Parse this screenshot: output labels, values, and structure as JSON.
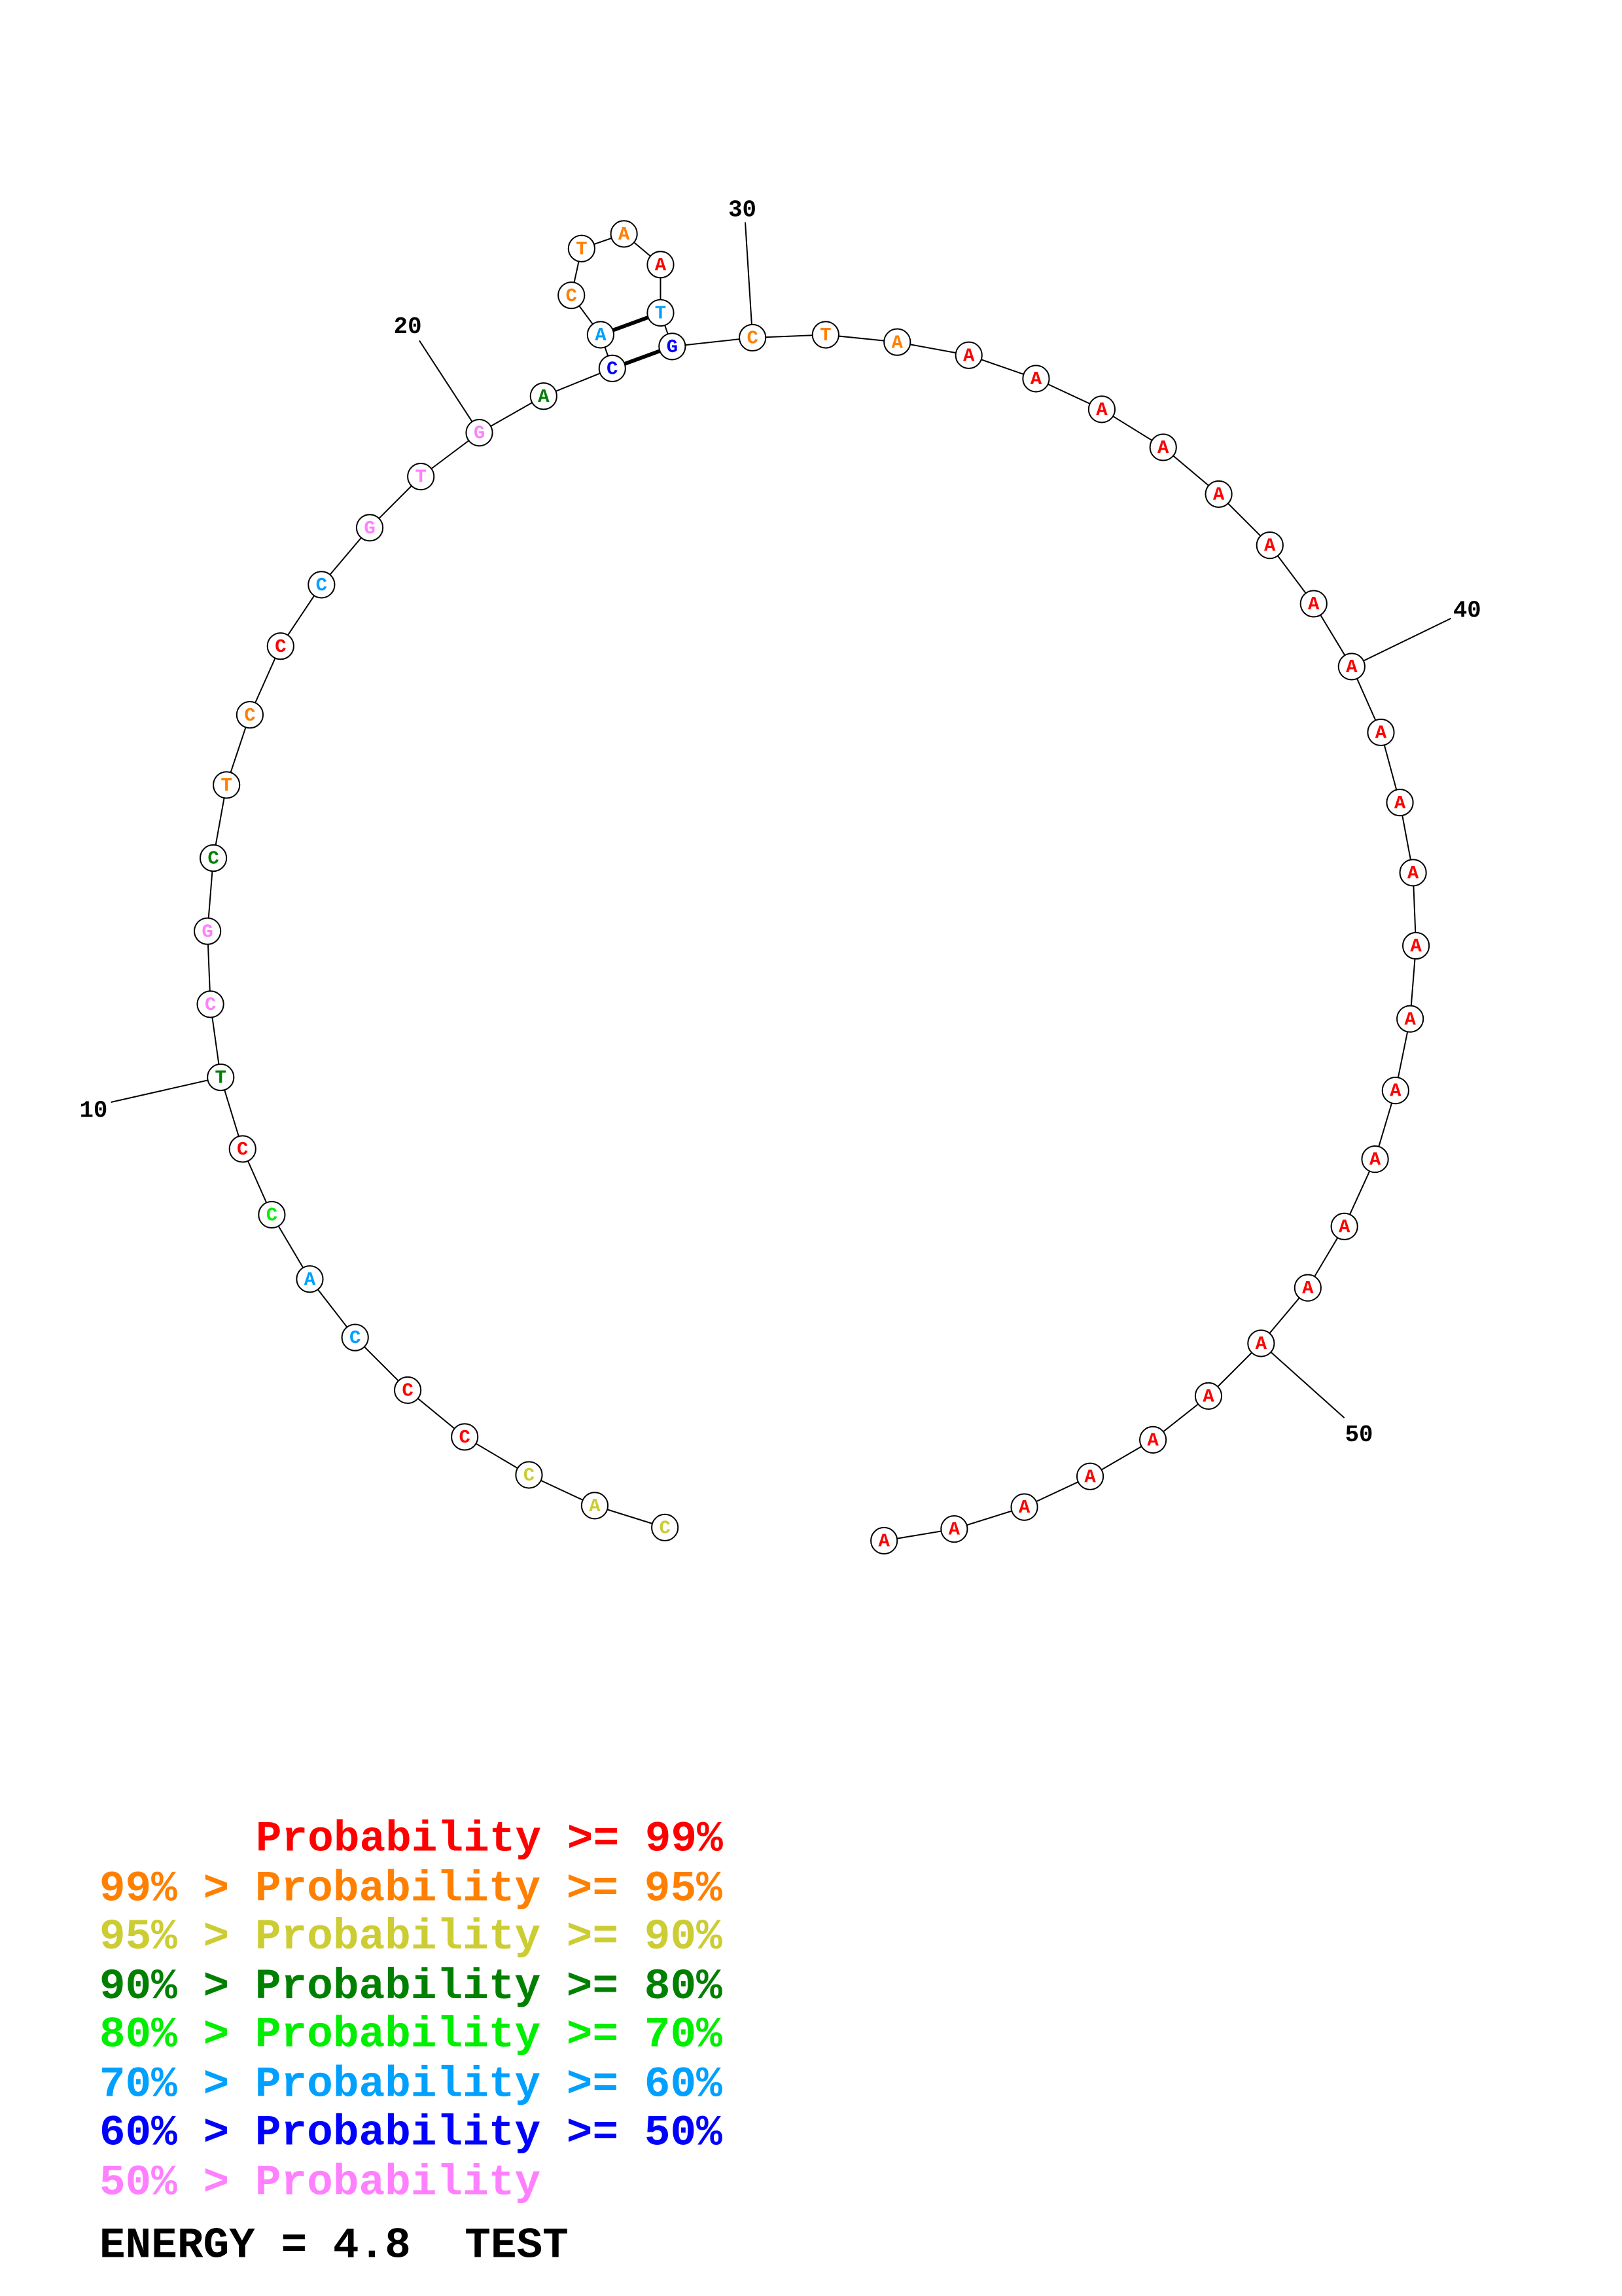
{
  "nucleotides": [
    {
      "base": "C",
      "color": "#cccc33"
    },
    {
      "base": "A",
      "color": "#cccc33"
    },
    {
      "base": "C",
      "color": "#cccc33"
    },
    {
      "base": "C",
      "color": "#ff0000"
    },
    {
      "base": "C",
      "color": "#ff0000"
    },
    {
      "base": "C",
      "color": "#00a0ff"
    },
    {
      "base": "A",
      "color": "#00a0ff"
    },
    {
      "base": "C",
      "color": "#00ee00"
    },
    {
      "base": "C",
      "color": "#ff0000"
    },
    {
      "base": "T",
      "color": "#008000"
    },
    {
      "base": "C",
      "color": "#ff80ff"
    },
    {
      "base": "G",
      "color": "#ff80ff"
    },
    {
      "base": "C",
      "color": "#008000"
    },
    {
      "base": "T",
      "color": "#ff8000"
    },
    {
      "base": "C",
      "color": "#ff8000"
    },
    {
      "base": "C",
      "color": "#ff0000"
    },
    {
      "base": "C",
      "color": "#00a0ff"
    },
    {
      "base": "G",
      "color": "#ff80ff"
    },
    {
      "base": "T",
      "color": "#ff80ff"
    },
    {
      "base": "G",
      "color": "#ff80ff"
    },
    {
      "base": "A",
      "color": "#008000"
    },
    {
      "base": "C",
      "color": "#0000ff"
    },
    {
      "base": "A",
      "color": "#00a0ff"
    },
    {
      "base": "C",
      "color": "#ff8000"
    },
    {
      "base": "T",
      "color": "#ff8000"
    },
    {
      "base": "A",
      "color": "#ff8000"
    },
    {
      "base": "A",
      "color": "#ff0000"
    },
    {
      "base": "T",
      "color": "#00a0ff"
    },
    {
      "base": "G",
      "color": "#0000ff"
    },
    {
      "base": "C",
      "color": "#ff8000"
    },
    {
      "base": "T",
      "color": "#ff8000"
    },
    {
      "base": "A",
      "color": "#ff8000"
    },
    {
      "base": "A",
      "color": "#ff0000"
    },
    {
      "base": "A",
      "color": "#ff0000"
    },
    {
      "base": "A",
      "color": "#ff0000"
    },
    {
      "base": "A",
      "color": "#ff0000"
    },
    {
      "base": "A",
      "color": "#ff0000"
    },
    {
      "base": "A",
      "color": "#ff0000"
    },
    {
      "base": "A",
      "color": "#ff0000"
    },
    {
      "base": "A",
      "color": "#ff0000"
    },
    {
      "base": "A",
      "color": "#ff0000"
    },
    {
      "base": "A",
      "color": "#ff0000"
    },
    {
      "base": "A",
      "color": "#ff0000"
    },
    {
      "base": "A",
      "color": "#ff0000"
    },
    {
      "base": "A",
      "color": "#ff0000"
    },
    {
      "base": "A",
      "color": "#ff0000"
    },
    {
      "base": "A",
      "color": "#ff0000"
    },
    {
      "base": "A",
      "color": "#ff0000"
    },
    {
      "base": "A",
      "color": "#ff0000"
    },
    {
      "base": "A",
      "color": "#ff0000"
    },
    {
      "base": "A",
      "color": "#ff0000"
    },
    {
      "base": "A",
      "color": "#ff0000"
    },
    {
      "base": "A",
      "color": "#ff0000"
    },
    {
      "base": "A",
      "color": "#ff0000"
    },
    {
      "base": "A",
      "color": "#ff0000"
    },
    {
      "base": "A",
      "color": "#ff0000"
    }
  ],
  "base_pairs": [
    [
      22,
      29
    ],
    [
      23,
      28
    ]
  ],
  "position_labels": [
    {
      "text": "10",
      "position": 10
    },
    {
      "text": "20",
      "position": 20
    },
    {
      "text": "30",
      "position": 30
    },
    {
      "text": "40",
      "position": 40
    },
    {
      "text": "50",
      "position": 50
    }
  ],
  "legend": [
    {
      "text": "Probability >= 99%",
      "color": "#ff0000"
    },
    {
      "text": "99% > Probability >= 95%",
      "color": "#ff8000"
    },
    {
      "text": "95% > Probability >= 90%",
      "color": "#cccc33"
    },
    {
      "text": "90% > Probability >= 80%",
      "color": "#008000"
    },
    {
      "text": "80% > Probability >= 70%",
      "color": "#00ee00"
    },
    {
      "text": "70% > Probability >= 60%",
      "color": "#00a0ff"
    },
    {
      "text": "60% > Probability >= 50%",
      "color": "#0000ff"
    },
    {
      "text": "50% > Probability",
      "color": "#ff80ff"
    }
  ],
  "energy": "ENERGY = 4.8",
  "title": "TEST"
}
